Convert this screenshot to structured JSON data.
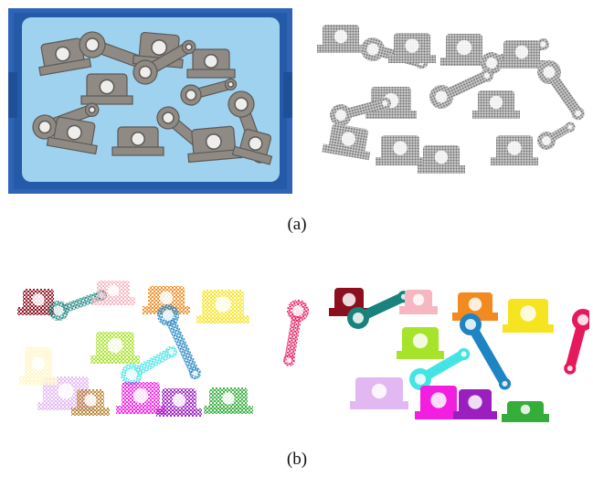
{
  "captions": {
    "a": "(a)",
    "b": "(b)"
  },
  "colors": {
    "bin_frame": "#2f63b8",
    "bin_floor": "#9fd2ee",
    "metal": "#8f8a84",
    "cloud_gray": "#9a9a9a",
    "instance_palette": [
      "#8b0f1e",
      "#19827c",
      "#f6b6c2",
      "#f28a1f",
      "#f7e420",
      "#e5195c",
      "#a8e32c",
      "#1f84c4",
      "#45e4e4",
      "#e2b8f3",
      "#f21ee0",
      "#9b1fbf",
      "#34ad3a",
      "#fff5bf",
      "#b8832c"
    ]
  }
}
